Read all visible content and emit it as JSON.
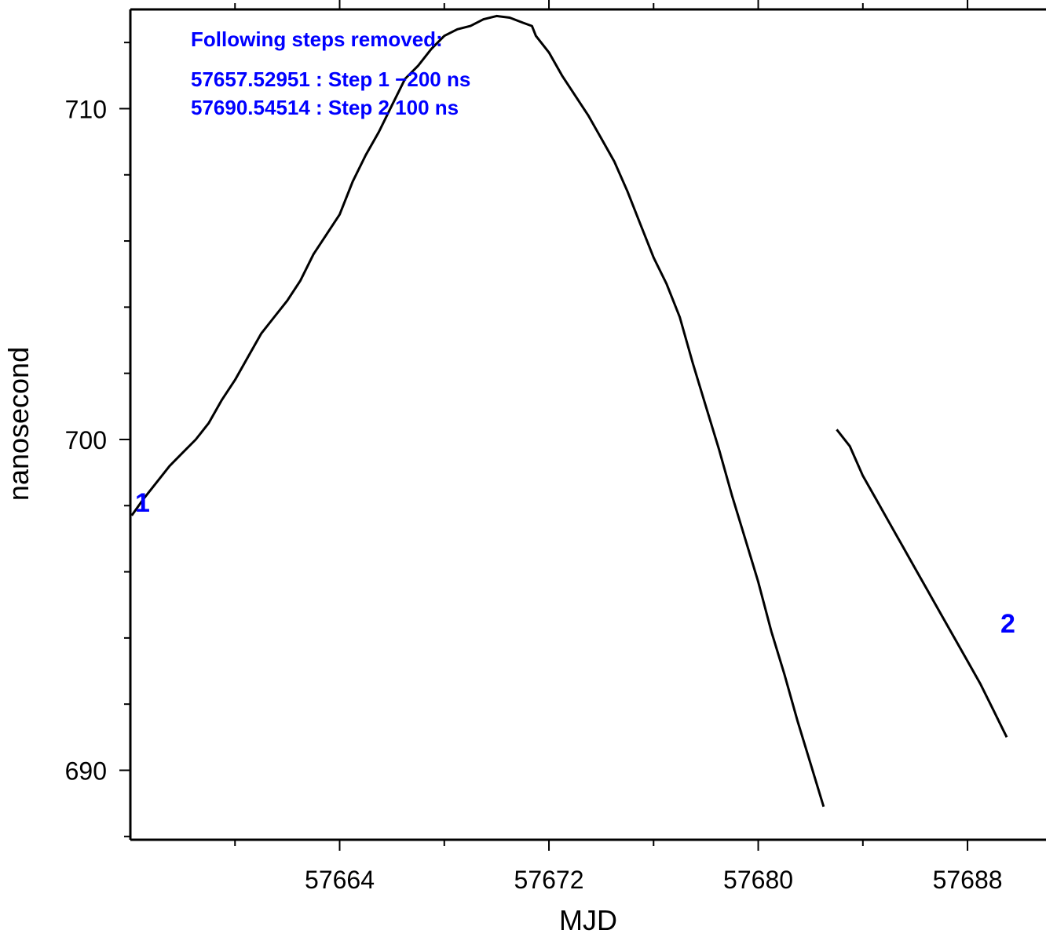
{
  "chart_data": {
    "type": "line",
    "xlabel": "MJD",
    "ylabel": "nanosecond",
    "xlim": [
      57656.0,
      57691.0
    ],
    "ylim": [
      687.9,
      713.0
    ],
    "x_ticks": [
      57664,
      57672,
      57680,
      57688
    ],
    "x_minor_ticks": [
      57660,
      57668,
      57676,
      57684
    ],
    "y_ticks": [
      690,
      700,
      710
    ],
    "y_minor_ticks": [
      688,
      692,
      694,
      696,
      698,
      702,
      704,
      706,
      708,
      712
    ],
    "grid": false,
    "colors": {
      "line": "#000000",
      "annotation": "#0000ff"
    },
    "annotation": {
      "heading": "Following steps removed:",
      "lines": [
        "57657.52951 : Step 1 −200 ns",
        "57690.54514 : Step 2 100 ns"
      ]
    },
    "step_markers": [
      {
        "label": "1",
        "x": 57656.3,
        "y": 697.6
      },
      {
        "label": "2",
        "x": 57689.7,
        "y": 693.9
      }
    ],
    "series": [
      {
        "x": [
          57656.05,
          57656.5,
          57657.0,
          57657.5,
          57658.0,
          57658.5,
          57659.0,
          57659.5,
          57660.0,
          57660.5,
          57661.0,
          57661.5,
          57662.0,
          57662.5,
          57663.0,
          57663.5,
          57664.0,
          57664.5,
          57665.0,
          57665.5,
          57666.0,
          57666.5,
          57667.0,
          57667.5,
          57668.0,
          57668.5,
          57669.0,
          57669.5,
          57670.0,
          57670.5,
          57671.0,
          57671.35,
          57671.5,
          57672.0,
          57672.5,
          57673.0,
          57673.5,
          57674.0,
          57674.5,
          57675.0,
          57675.5,
          57676.0,
          57676.5,
          57677.0,
          57677.5,
          57678.0,
          57678.5,
          57679.0,
          57679.5,
          57680.0,
          57680.5,
          57681.0,
          57681.5,
          57682.0,
          57682.5,
          57683.0,
          57683.5,
          57684.0,
          57684.5,
          57685.0,
          57685.5,
          57686.0,
          57686.5,
          57687.0,
          57687.5,
          57688.0,
          57688.5,
          57689.0,
          57689.5
        ],
        "y": [
          697.7,
          698.2,
          698.7,
          699.2,
          699.6,
          700.0,
          700.5,
          701.2,
          701.8,
          702.5,
          703.2,
          703.7,
          704.2,
          704.8,
          705.6,
          706.2,
          706.8,
          707.8,
          708.6,
          709.3,
          710.1,
          710.9,
          711.3,
          711.8,
          712.2,
          712.4,
          712.5,
          712.7,
          712.8,
          712.75,
          712.6,
          712.5,
          712.2,
          711.7,
          711.0,
          710.4,
          709.8,
          709.1,
          708.4,
          707.5,
          706.5,
          705.5,
          704.7,
          703.7,
          702.3,
          701.0,
          699.7,
          698.3,
          697.0,
          695.7,
          694.2,
          692.9,
          691.5,
          690.2,
          688.9,
          700.3,
          699.8,
          698.9,
          698.2,
          697.5,
          696.8,
          696.1,
          695.4,
          694.7,
          694.0,
          693.3,
          692.6,
          691.8,
          691.0
        ],
        "note_segments": [
          [
            0,
            54
          ],
          [
            55,
            68
          ]
        ]
      }
    ]
  }
}
